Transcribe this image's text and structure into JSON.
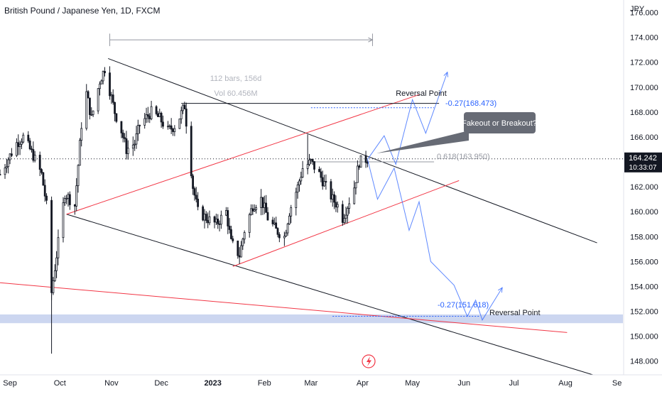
{
  "header": {
    "symbol_title": "British Pound / Japanese Yen, 1D, FXCM",
    "currency": "JPY"
  },
  "price_tag": {
    "price": "164.242",
    "countdown": "10:33:07"
  },
  "colors": {
    "up_candle": "#131722",
    "down_candle": "#131722",
    "channel_line": "#131722",
    "red_line": "#f23645",
    "projection": "#2962ff",
    "zone": "#b6c5ea",
    "label_bg": "#676b75"
  },
  "chart_data": {
    "type": "candlestick",
    "title": "British Pound / Japanese Yen, 1D, FXCM",
    "y_unit": "JPY",
    "ylim": [
      146.9,
      177.0
    ],
    "y_ticks": [
      148,
      150,
      152,
      154,
      156,
      158,
      160,
      162,
      164,
      166,
      168,
      170,
      172,
      174,
      176
    ],
    "y_tick_labels": [
      "148.000",
      "150.000",
      "152.000",
      "154.000",
      "156.000",
      "158.000",
      "160.000",
      "162.000",
      "164.000",
      "166.000",
      "168.000",
      "170.000",
      "172.000",
      "174.000",
      "176.000"
    ],
    "x_range": [
      "2022-08-26",
      "2023-09-05"
    ],
    "x_ticks": [
      {
        "label": "Sep",
        "date": "2022-09-01"
      },
      {
        "label": "Oct",
        "date": "2022-10-01"
      },
      {
        "label": "Nov",
        "date": "2022-11-01"
      },
      {
        "label": "Dec",
        "date": "2022-12-01"
      },
      {
        "label": "2023",
        "date": "2023-01-01",
        "bold": true
      },
      {
        "label": "Feb",
        "date": "2023-02-01"
      },
      {
        "label": "Mar",
        "date": "2023-03-01"
      },
      {
        "label": "Apr",
        "date": "2023-04-01"
      },
      {
        "label": "May",
        "date": "2023-05-01"
      },
      {
        "label": "Jun",
        "date": "2023-06-01"
      },
      {
        "label": "Jul",
        "date": "2023-07-01"
      },
      {
        "label": "Aug",
        "date": "2023-08-01"
      },
      {
        "label": "Se",
        "date": "2023-09-01"
      }
    ],
    "current_price": 164.242,
    "price_path": [
      [
        "2022-08-26",
        163.0
      ],
      [
        "2022-09-05",
        165.5
      ],
      [
        "2022-09-09",
        166.0
      ],
      [
        "2022-09-15",
        164.5
      ],
      [
        "2022-09-20",
        163.0
      ],
      [
        "2022-09-23",
        160.5
      ],
      [
        "2022-09-26",
        153.5
      ],
      [
        "2022-09-29",
        156.5
      ],
      [
        "2022-10-04",
        161.5
      ],
      [
        "2022-10-10",
        160.5
      ],
      [
        "2022-10-14",
        167.0
      ],
      [
        "2022-10-17",
        169.5
      ],
      [
        "2022-10-20",
        167.5
      ],
      [
        "2022-10-25",
        170.5
      ],
      [
        "2022-10-28",
        171.5
      ],
      [
        "2022-11-03",
        168.0
      ],
      [
        "2022-11-07",
        166.5
      ],
      [
        "2022-11-10",
        165.0
      ],
      [
        "2022-11-15",
        165.5
      ],
      [
        "2022-11-18",
        167.0
      ],
      [
        "2022-11-25",
        168.0
      ],
      [
        "2022-11-30",
        167.5
      ],
      [
        "2022-12-05",
        166.5
      ],
      [
        "2022-12-10",
        167.0
      ],
      [
        "2022-12-15",
        168.5
      ],
      [
        "2022-12-20",
        162.0
      ],
      [
        "2022-12-23",
        160.0
      ],
      [
        "2022-12-28",
        159.5
      ],
      [
        "2023-01-03",
        159.0
      ],
      [
        "2023-01-09",
        160.0
      ],
      [
        "2023-01-12",
        157.5
      ],
      [
        "2023-01-17",
        156.5
      ],
      [
        "2023-01-20",
        158.5
      ],
      [
        "2023-01-25",
        160.5
      ],
      [
        "2023-01-30",
        161.0
      ],
      [
        "2023-02-03",
        159.5
      ],
      [
        "2023-02-08",
        158.5
      ],
      [
        "2023-02-13",
        158.0
      ],
      [
        "2023-02-16",
        160.0
      ],
      [
        "2023-02-21",
        162.0
      ],
      [
        "2023-02-24",
        163.5
      ],
      [
        "2023-03-01",
        164.0
      ],
      [
        "2023-03-06",
        163.0
      ],
      [
        "2023-03-10",
        162.0
      ],
      [
        "2023-03-14",
        161.0
      ],
      [
        "2023-03-17",
        160.5
      ],
      [
        "2023-03-20",
        159.5
      ],
      [
        "2023-03-23",
        160.5
      ],
      [
        "2023-03-27",
        162.0
      ],
      [
        "2023-03-30",
        164.0
      ],
      [
        "2023-04-04",
        164.242
      ]
    ],
    "annotations": {
      "date_range": {
        "start": "2022-10-31",
        "end": "2023-04-07",
        "price": 173.8,
        "bars_text": "112 bars, 156d",
        "vol_text": "Vol 60.456M"
      },
      "reversal_top_label": "Reversal Point",
      "reversal_bottom_label": "Reversal Point",
      "fib_upper_text": "-0.27(168.473)",
      "fib_mid_text": "0.618(163.950)",
      "fib_lower_text": "-0.27(151.618)",
      "callout_text": "Fakeout or Breakout?"
    }
  }
}
